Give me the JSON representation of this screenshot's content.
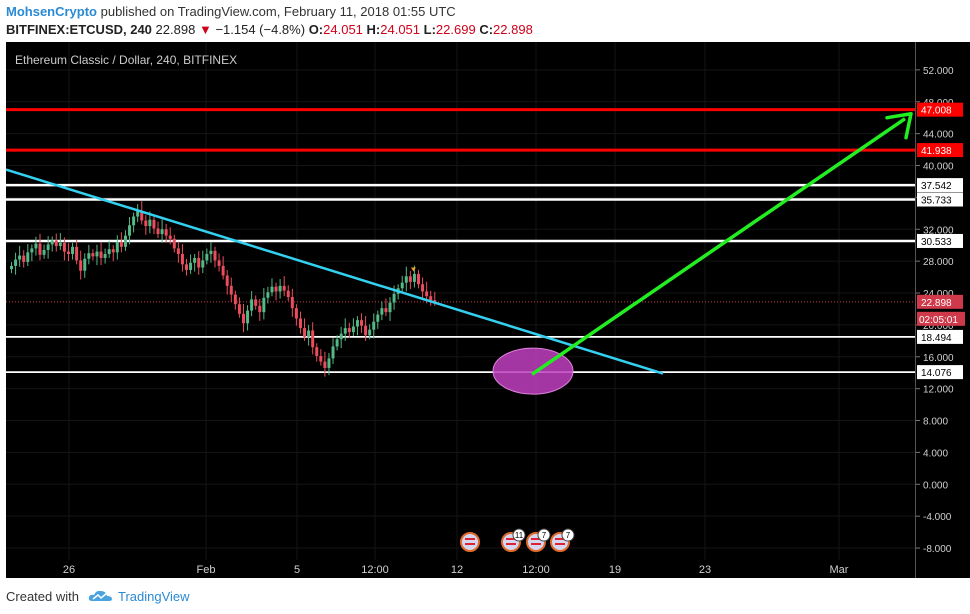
{
  "header": {
    "author": "MohsenCrypto",
    "published_text": " published on TradingView.com, February 11, 2018 01:55 UTC",
    "symbol": "BITFINEX:ETCUSD, 240",
    "last": "22.898",
    "change": "−1.154 (−4.8%)",
    "ohlc": {
      "o_label": "O:",
      "o": "24.051",
      "h_label": "H:",
      "h": "24.051",
      "l_label": "L:",
      "l": "22.699",
      "c_label": "C:",
      "c": "22.898"
    }
  },
  "footer": {
    "created_with": "Created with",
    "brand": "TradingView"
  },
  "colors": {
    "background": "#000000",
    "up_candle": "#53b987",
    "down_candle": "#eb4d5c",
    "support_line": "#ffffff",
    "resistance_line": "#ff0000",
    "trendline": "#33d0f0",
    "arrow": "#22ee22",
    "ellipse": "#c040c0",
    "price_tag": "#d0394a"
  },
  "chart_data": {
    "type": "candlestick",
    "title": "Ethereum Classic / Dollar, 240, BITFINEX",
    "ylim": [
      -9.5,
      55.5
    ],
    "y_ticks": [
      52,
      48,
      44,
      40,
      36,
      32,
      28,
      24,
      20,
      16,
      12,
      8,
      4,
      0,
      -4,
      -8
    ],
    "y_tick_labels": [
      "52.000",
      "48.000",
      "44.000",
      "40.000",
      "36.000",
      "32.000",
      "28.000",
      "24.000",
      "20.000",
      "16.000",
      "12.000",
      "8.000",
      "4.000",
      "0.000",
      "-4.000",
      "-8.000"
    ],
    "x_tick_labels": [
      "26",
      "Feb",
      "5",
      "12:00",
      "12",
      "12:00",
      "19",
      "23",
      "Mar"
    ],
    "horizontal_levels": [
      {
        "value": 47.008,
        "label": "47.008",
        "style": "resistance"
      },
      {
        "value": 41.938,
        "label": "41.938",
        "style": "resistance"
      },
      {
        "value": 37.542,
        "label": "37.542",
        "style": "support"
      },
      {
        "value": 35.733,
        "label": "35.733",
        "style": "support"
      },
      {
        "value": 30.533,
        "label": "30.533",
        "style": "support"
      },
      {
        "value": 18.494,
        "label": "18.494",
        "style": "support"
      },
      {
        "value": 14.076,
        "label": "14.076",
        "style": "support"
      }
    ],
    "current_price": {
      "value": 22.898,
      "label": "22.898",
      "countdown": "02:05:01"
    },
    "candles_close": [
      27.4,
      28.2,
      28.7,
      27.9,
      29.1,
      29.6,
      30.2,
      28.8,
      29.4,
      30.1,
      30.6,
      29.9,
      30.3,
      29.2,
      28.9,
      29.8,
      28.1,
      26.8,
      28.3,
      29.0,
      28.6,
      29.2,
      28.4,
      28.9,
      29.5,
      29.1,
      30.4,
      29.8,
      31.2,
      32.5,
      33.6,
      34.3,
      33.1,
      32.4,
      33.2,
      32.1,
      31.4,
      32.0,
      31.2,
      30.8,
      29.6,
      28.9,
      27.6,
      26.9,
      27.8,
      28.4,
      27.2,
      28.1,
      28.9,
      29.3,
      28.1,
      27.4,
      26.2,
      24.9,
      23.8,
      22.6,
      21.4,
      20.2,
      21.8,
      23.2,
      22.4,
      21.6,
      23.4,
      24.1,
      24.8,
      24.2,
      24.9,
      24.3,
      23.5,
      22.1,
      20.8,
      19.6,
      18.5,
      19.3,
      17.2,
      16.1,
      15.4,
      14.6,
      15.8,
      17.3,
      18.2,
      18.9,
      19.6,
      19.1,
      19.8,
      20.6,
      19.9,
      18.7,
      19.4,
      20.4,
      21.3,
      22.1,
      21.6,
      22.8,
      23.9,
      24.6,
      25.3,
      26.1,
      25.4,
      26.4,
      25.1,
      24.2,
      23.6,
      23.1,
      22.9
    ],
    "trendline": {
      "from": {
        "x_label": "start",
        "y": 39.5
      },
      "to": {
        "x_label": "after 19",
        "y": 13.9
      }
    },
    "projection_arrow": {
      "from_y": 13.8,
      "to_y": 46.5
    },
    "marker_badges": [
      "11",
      "7",
      "7"
    ]
  }
}
